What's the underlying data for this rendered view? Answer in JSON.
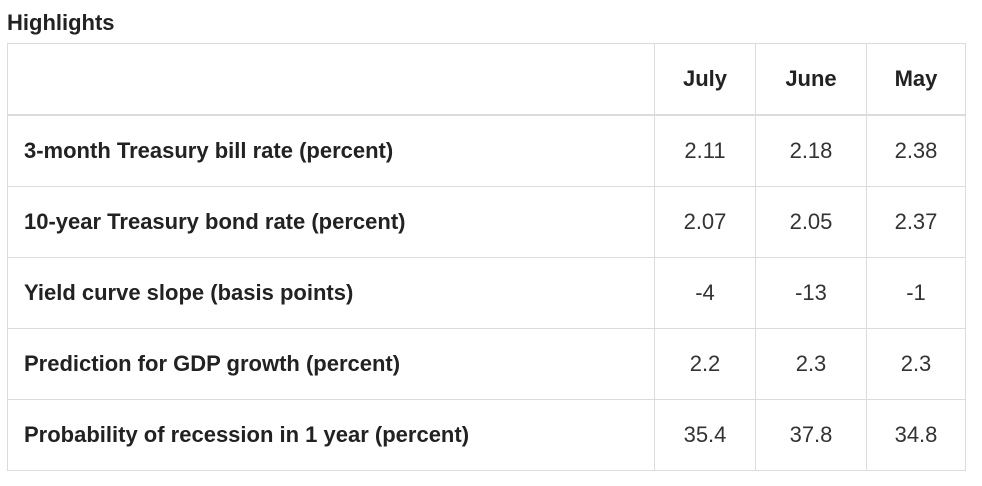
{
  "title": "Highlights",
  "columns": [
    "",
    "July",
    "June",
    "May"
  ],
  "rows": [
    {
      "label": "3-month Treasury bill rate (percent)",
      "values": [
        "2.11",
        "2.18",
        "2.38"
      ]
    },
    {
      "label": "10-year Treasury bond rate (percent)",
      "values": [
        "2.07",
        "2.05",
        "2.37"
      ]
    },
    {
      "label": "Yield curve slope (basis points)",
      "values": [
        "-4",
        "-13",
        "-1"
      ]
    },
    {
      "label": "Prediction for GDP growth (percent)",
      "values": [
        "2.2",
        "2.3",
        "2.3"
      ]
    },
    {
      "label": "Probability of recession in 1 year (percent)",
      "values": [
        "35.4",
        "37.8",
        "34.8"
      ]
    }
  ]
}
